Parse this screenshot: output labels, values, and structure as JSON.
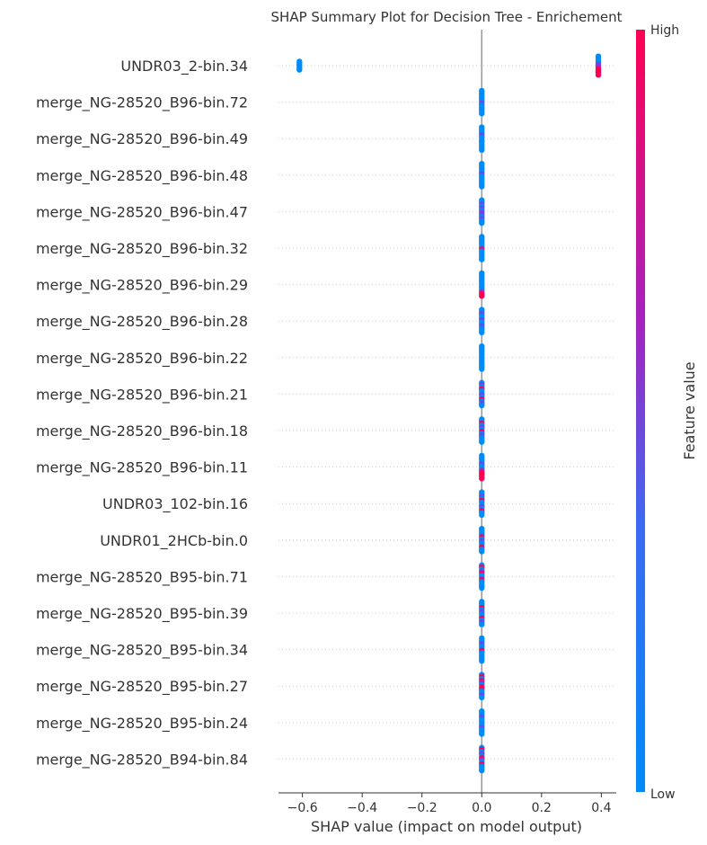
{
  "chart_data": {
    "type": "scatter",
    "title": "SHAP Summary Plot for Decision Tree - Enrichement",
    "xlabel": "SHAP value (impact on model output)",
    "xlim": [
      -0.68,
      0.45
    ],
    "xticks": [
      -0.6,
      -0.4,
      -0.2,
      0.0,
      0.2,
      0.4
    ],
    "xtick_labels": [
      "−0.6",
      "−0.4",
      "−0.2",
      "0.0",
      "0.2",
      "0.4"
    ],
    "colorbar": {
      "label": "Feature value",
      "high_label": "High",
      "low_label": "Low",
      "low_color": "#008bfb",
      "high_color": "#ff0052"
    },
    "features": [
      {
        "name": "UNDR03_2-bin.34",
        "points": [
          {
            "x": -0.61,
            "n": 5,
            "colors": [
              "low",
              "low",
              "low",
              "low",
              "low"
            ]
          },
          {
            "x": 0.39,
            "n": 10,
            "colors": [
              "low",
              "low",
              "low",
              "low",
              "mid",
              "mid",
              "high",
              "high",
              "high",
              "high"
            ]
          }
        ]
      },
      {
        "name": "merge_NG-28520_B96-bin.72",
        "points": [
          {
            "x": 0.0,
            "n": 12,
            "colors": [
              "low",
              "low",
              "low",
              "low",
              "low",
              "low",
              "mid",
              "low",
              "low",
              "low",
              "low",
              "low"
            ]
          }
        ]
      },
      {
        "name": "merge_NG-28520_B96-bin.49",
        "points": [
          {
            "x": 0.0,
            "n": 12,
            "colors": [
              "low",
              "low",
              "low",
              "low",
              "mid",
              "low",
              "low",
              "low",
              "low",
              "low",
              "low",
              "low"
            ]
          }
        ]
      },
      {
        "name": "merge_NG-28520_B96-bin.48",
        "points": [
          {
            "x": 0.0,
            "n": 12,
            "colors": [
              "low",
              "low",
              "low",
              "low",
              "low",
              "mid",
              "low",
              "low",
              "low",
              "low",
              "low",
              "low"
            ]
          }
        ]
      },
      {
        "name": "merge_NG-28520_B96-bin.47",
        "points": [
          {
            "x": 0.0,
            "n": 12,
            "colors": [
              "low",
              "low",
              "mid",
              "low",
              "mid",
              "low",
              "mid",
              "mid",
              "low",
              "mid",
              "low",
              "low"
            ]
          }
        ]
      },
      {
        "name": "merge_NG-28520_B96-bin.32",
        "points": [
          {
            "x": 0.0,
            "n": 12,
            "colors": [
              "low",
              "low",
              "low",
              "low",
              "low",
              "low",
              "high",
              "low",
              "low",
              "low",
              "low",
              "low"
            ]
          }
        ]
      },
      {
        "name": "merge_NG-28520_B96-bin.29",
        "points": [
          {
            "x": 0.0,
            "n": 12,
            "colors": [
              "low",
              "low",
              "low",
              "low",
              "low",
              "low",
              "low",
              "low",
              "low",
              "mid",
              "high",
              "high"
            ]
          }
        ]
      },
      {
        "name": "merge_NG-28520_B96-bin.28",
        "points": [
          {
            "x": 0.0,
            "n": 12,
            "colors": [
              "low",
              "low",
              "mid",
              "low",
              "low",
              "mid",
              "low",
              "low",
              "mid",
              "low",
              "low",
              "low"
            ]
          }
        ]
      },
      {
        "name": "merge_NG-28520_B96-bin.22",
        "points": [
          {
            "x": 0.0,
            "n": 12,
            "colors": [
              "low",
              "low",
              "low",
              "low",
              "low",
              "low",
              "low",
              "low",
              "low",
              "low",
              "low",
              "low"
            ]
          }
        ]
      },
      {
        "name": "merge_NG-28520_B96-bin.21",
        "points": [
          {
            "x": 0.0,
            "n": 12,
            "colors": [
              "low",
              "mid",
              "low",
              "high",
              "low",
              "low",
              "mid",
              "low",
              "high",
              "low",
              "mid",
              "low"
            ]
          }
        ]
      },
      {
        "name": "merge_NG-28520_B96-bin.18",
        "points": [
          {
            "x": 0.0,
            "n": 12,
            "colors": [
              "low",
              "low",
              "high",
              "low",
              "mid",
              "low",
              "high",
              "low",
              "mid",
              "low",
              "low",
              "low"
            ]
          }
        ]
      },
      {
        "name": "merge_NG-28520_B96-bin.11",
        "points": [
          {
            "x": 0.0,
            "n": 12,
            "colors": [
              "low",
              "low",
              "low",
              "low",
              "mid",
              "low",
              "low",
              "mid",
              "high",
              "high",
              "high",
              "high"
            ]
          }
        ]
      },
      {
        "name": "UNDR03_102-bin.16",
        "points": [
          {
            "x": 0.0,
            "n": 12,
            "colors": [
              "low",
              "low",
              "mid",
              "low",
              "high",
              "low",
              "low",
              "mid",
              "low",
              "high",
              "low",
              "low"
            ]
          }
        ]
      },
      {
        "name": "UNDR01_2HCb-bin.0",
        "points": [
          {
            "x": 0.0,
            "n": 12,
            "colors": [
              "low",
              "low",
              "low",
              "low",
              "high",
              "low",
              "mid",
              "low",
              "low",
              "high",
              "low",
              "low"
            ]
          }
        ]
      },
      {
        "name": "merge_NG-28520_B95-bin.71",
        "points": [
          {
            "x": 0.0,
            "n": 12,
            "colors": [
              "low",
              "high",
              "low",
              "mid",
              "high",
              "low",
              "low",
              "high",
              "low",
              "low",
              "low",
              "low"
            ]
          }
        ]
      },
      {
        "name": "merge_NG-28520_B95-bin.39",
        "points": [
          {
            "x": 0.0,
            "n": 12,
            "colors": [
              "low",
              "low",
              "low",
              "high",
              "low",
              "mid",
              "low",
              "low",
              "high",
              "low",
              "mid",
              "low"
            ]
          }
        ]
      },
      {
        "name": "merge_NG-28520_B95-bin.34",
        "points": [
          {
            "x": 0.0,
            "n": 12,
            "colors": [
              "low",
              "low",
              "low",
              "mid",
              "low",
              "low",
              "high",
              "low",
              "low",
              "low",
              "low",
              "low"
            ]
          }
        ]
      },
      {
        "name": "merge_NG-28520_B95-bin.27",
        "points": [
          {
            "x": 0.0,
            "n": 12,
            "colors": [
              "low",
              "high",
              "low",
              "high",
              "mid",
              "low",
              "high",
              "high",
              "low",
              "low",
              "mid",
              "low"
            ]
          }
        ]
      },
      {
        "name": "merge_NG-28520_B95-bin.24",
        "points": [
          {
            "x": 0.0,
            "n": 12,
            "colors": [
              "low",
              "low",
              "low",
              "mid",
              "low",
              "low",
              "low",
              "low",
              "mid",
              "low",
              "low",
              "low"
            ]
          }
        ]
      },
      {
        "name": "merge_NG-28520_B94-bin.84",
        "points": [
          {
            "x": 0.0,
            "n": 12,
            "colors": [
              "low",
              "high",
              "low",
              "mid",
              "low",
              "high",
              "mid",
              "low",
              "high",
              "low",
              "low",
              "low"
            ]
          }
        ]
      }
    ]
  }
}
